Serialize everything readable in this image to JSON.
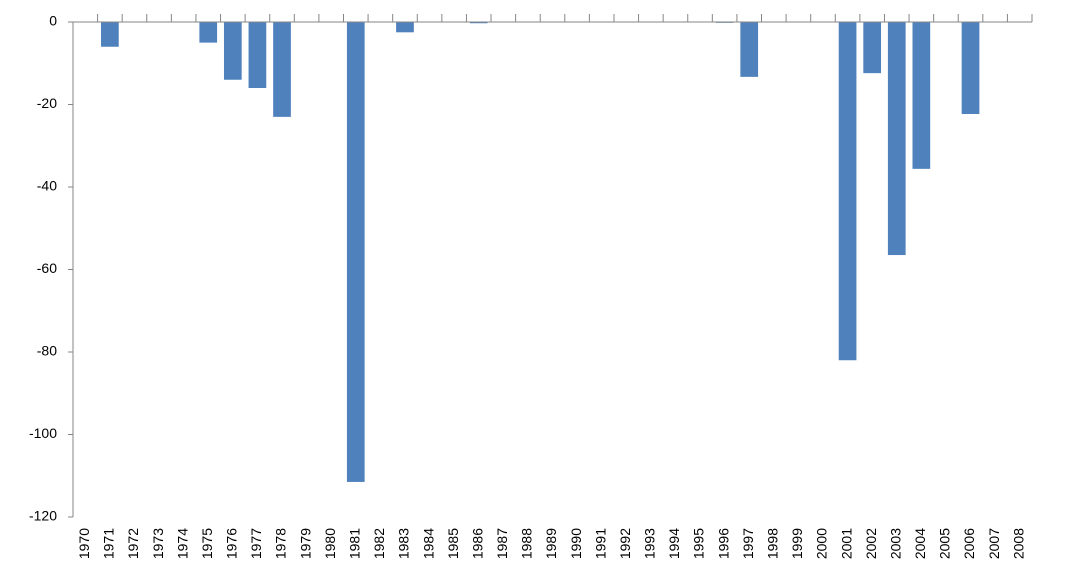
{
  "chart_data": {
    "type": "bar",
    "categories": [
      "1970",
      "1971",
      "1972",
      "1973",
      "1974",
      "1975",
      "1976",
      "1977",
      "1978",
      "1979",
      "1980",
      "1981",
      "1982",
      "1983",
      "1984",
      "1985",
      "1986",
      "1987",
      "1988",
      "1989",
      "1990",
      "1991",
      "1992",
      "1993",
      "1994",
      "1995",
      "1996",
      "1997",
      "1998",
      "1999",
      "2000",
      "2001",
      "2002",
      "2003",
      "2004",
      "2005",
      "2006",
      "2007",
      "2008"
    ],
    "values": [
      0,
      -6,
      0,
      0,
      0,
      -5,
      -14,
      -16,
      -23,
      0,
      0,
      -111.5,
      0,
      -2.5,
      0,
      0,
      -0.3,
      0,
      0,
      0,
      0,
      0,
      0,
      0,
      0,
      0,
      -0.2,
      -13.3,
      0,
      0,
      0,
      -82,
      -12.4,
      -56.5,
      -35.6,
      0,
      -22.3,
      0,
      0
    ],
    "color": "#4f81bd",
    "ylim": [
      -120,
      0
    ],
    "yticks": [
      -120,
      -100,
      -80,
      -60,
      -40,
      -20,
      0
    ],
    "grid": false
  }
}
